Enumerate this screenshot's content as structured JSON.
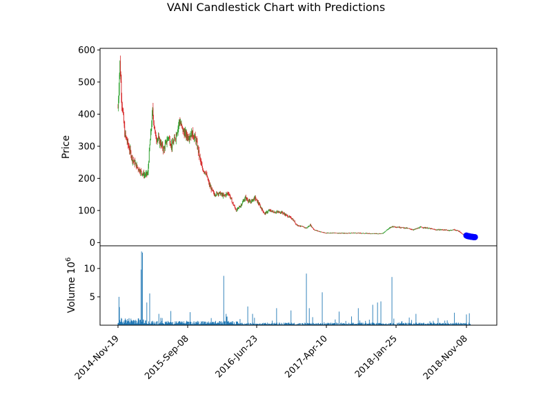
{
  "chart_data": {
    "type": "candlestick",
    "title": "VANI Candlestick Chart with Predictions",
    "x_tick_labels": [
      "2014-Nov-19",
      "2015-Sep-08",
      "2016-Jun-23",
      "2017-Apr-10",
      "2018-Jan-25",
      "2018-Nov-08"
    ],
    "price_panel": {
      "ylabel": "Price",
      "ylim": [
        -10,
        605
      ],
      "yticks": [
        0,
        100,
        200,
        300,
        400,
        500,
        600
      ],
      "up_color": "#2ca02c",
      "down_color": "#d62728",
      "price_path": [
        [
          0,
          420
        ],
        [
          4,
          560
        ],
        [
          8,
          440
        ],
        [
          14,
          340
        ],
        [
          22,
          300
        ],
        [
          30,
          260
        ],
        [
          40,
          235
        ],
        [
          48,
          220
        ],
        [
          55,
          210
        ],
        [
          62,
          215
        ],
        [
          66,
          300
        ],
        [
          72,
          410
        ],
        [
          78,
          330
        ],
        [
          85,
          320
        ],
        [
          95,
          290
        ],
        [
          105,
          330
        ],
        [
          112,
          300
        ],
        [
          120,
          330
        ],
        [
          128,
          380
        ],
        [
          136,
          345
        ],
        [
          145,
          330
        ],
        [
          155,
          340
        ],
        [
          162,
          320
        ],
        [
          168,
          280
        ],
        [
          175,
          230
        ],
        [
          182,
          220
        ],
        [
          190,
          180
        ],
        [
          200,
          150
        ],
        [
          210,
          155
        ],
        [
          220,
          145
        ],
        [
          230,
          155
        ],
        [
          238,
          125
        ],
        [
          246,
          100
        ],
        [
          255,
          115
        ],
        [
          265,
          140
        ],
        [
          275,
          125
        ],
        [
          285,
          140
        ],
        [
          295,
          115
        ],
        [
          305,
          90
        ],
        [
          315,
          100
        ],
        [
          325,
          95
        ],
        [
          340,
          95
        ],
        [
          350,
          85
        ],
        [
          362,
          75
        ],
        [
          372,
          55
        ],
        [
          382,
          50
        ],
        [
          392,
          45
        ],
        [
          400,
          55
        ],
        [
          408,
          40
        ],
        [
          418,
          35
        ],
        [
          430,
          30
        ],
        [
          450,
          30
        ],
        [
          470,
          29
        ],
        [
          490,
          30
        ],
        [
          510,
          29
        ],
        [
          530,
          28
        ],
        [
          550,
          28
        ],
        [
          560,
          40
        ],
        [
          570,
          50
        ],
        [
          585,
          48
        ],
        [
          600,
          45
        ],
        [
          615,
          40
        ],
        [
          630,
          48
        ],
        [
          645,
          45
        ],
        [
          660,
          40
        ],
        [
          675,
          40
        ],
        [
          690,
          38
        ],
        [
          700,
          40
        ],
        [
          710,
          35
        ],
        [
          718,
          25
        ],
        [
          725,
          22
        ],
        [
          733,
          18
        ]
      ],
      "prediction": {
        "color": "#0000ff",
        "values": [
          22,
          21,
          20,
          20,
          19,
          19,
          18,
          18,
          18,
          17,
          17,
          17
        ]
      }
    },
    "volume_panel": {
      "ylabel": "Volume",
      "unit_label": "10",
      "unit_exponent": "6",
      "ylim": [
        0,
        14
      ],
      "yticks": [
        5,
        10
      ],
      "bar_color": "#1f77b4",
      "spikes": [
        [
          2,
          5.0
        ],
        [
          3,
          3.2
        ],
        [
          48,
          9.8
        ],
        [
          49,
          13.0
        ],
        [
          51,
          12.8
        ],
        [
          60,
          4.0
        ],
        [
          66,
          5.6
        ],
        [
          85,
          2.0
        ],
        [
          110,
          2.5
        ],
        [
          150,
          2.3
        ],
        [
          220,
          8.7
        ],
        [
          225,
          2.0
        ],
        [
          270,
          3.3
        ],
        [
          280,
          2.0
        ],
        [
          330,
          3.0
        ],
        [
          360,
          2.6
        ],
        [
          392,
          9.1
        ],
        [
          398,
          3.0
        ],
        [
          425,
          5.8
        ],
        [
          460,
          2.4
        ],
        [
          500,
          3.0
        ],
        [
          530,
          3.6
        ],
        [
          540,
          4.0
        ],
        [
          547,
          4.2
        ],
        [
          570,
          8.5
        ],
        [
          620,
          2.0
        ],
        [
          700,
          2.2
        ],
        [
          725,
          1.9
        ],
        [
          731,
          2.1
        ]
      ]
    }
  }
}
